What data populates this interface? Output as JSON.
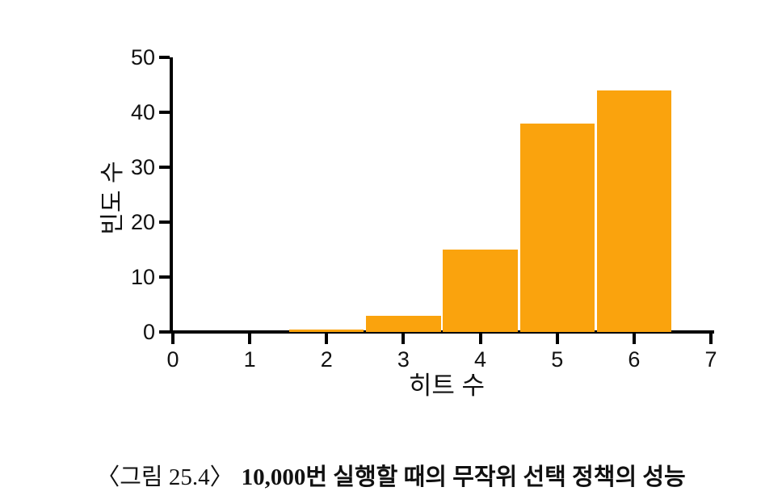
{
  "figure": {
    "caption_prefix": "〈그림 25.4〉",
    "caption_title": "10,000번 실행할 때의 무작위 선택 정책의 성능"
  },
  "chart_data": {
    "type": "bar",
    "title": "",
    "xlabel": "히트 수",
    "ylabel": "빈도 수",
    "x": [
      2,
      3,
      4,
      5,
      6
    ],
    "values": [
      0.5,
      3,
      15,
      38,
      44
    ],
    "bar_width": 0.97,
    "bar_color": "#FAA30D",
    "axis_color": "#000000",
    "xlim": [
      0,
      7
    ],
    "ylim": [
      0,
      50
    ],
    "xticks": [
      0,
      1,
      2,
      3,
      4,
      5,
      6,
      7
    ],
    "yticks": [
      0,
      10,
      20,
      30,
      40,
      50
    ],
    "grid": false,
    "legend": "none"
  }
}
